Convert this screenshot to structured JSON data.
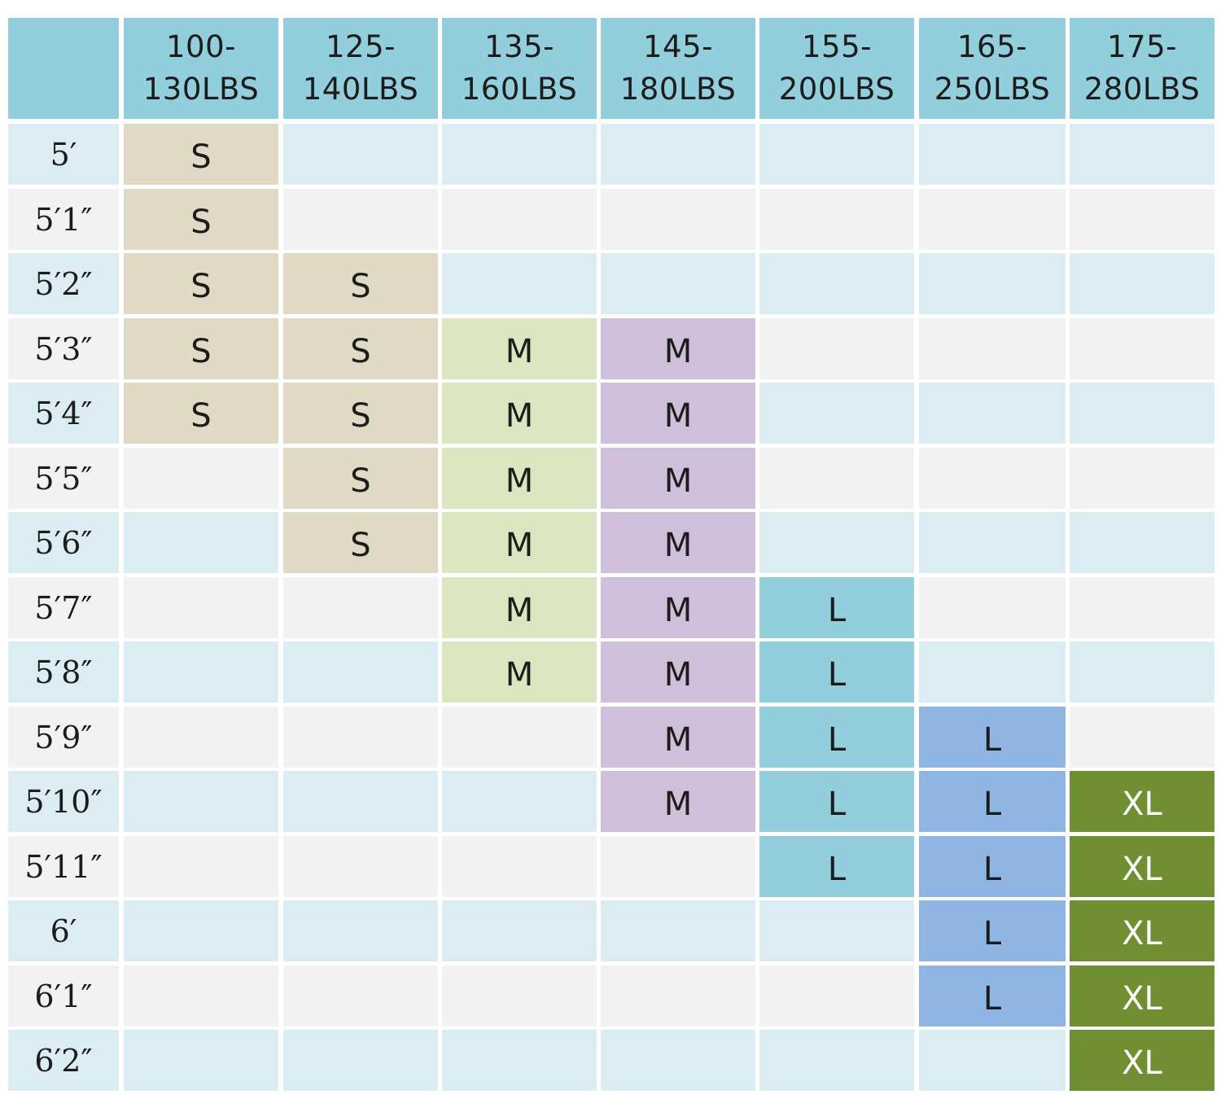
{
  "weight_ranges": [
    [
      "100-",
      "130LBS"
    ],
    [
      "125-",
      "140LBS"
    ],
    [
      "135-",
      "160LBS"
    ],
    [
      "145-",
      "180LBS"
    ],
    [
      "155-",
      "200LBS"
    ],
    [
      "165-",
      "250LBS"
    ],
    [
      "175-",
      "280LBS"
    ]
  ],
  "heights": [
    "5′",
    "5′1″",
    "5′2″",
    "5′3″",
    "5′4″",
    "5′5″",
    "5′6″",
    "5′7″",
    "5′8″",
    "5′9″",
    "5′10″",
    "5′11″",
    "6′",
    "6′1″",
    "6′2″"
  ],
  "sizes": [
    [
      "S",
      "",
      "",
      "",
      "",
      "",
      ""
    ],
    [
      "S",
      "",
      "",
      "",
      "",
      "",
      ""
    ],
    [
      "S",
      "S",
      "",
      "",
      "",
      "",
      ""
    ],
    [
      "S",
      "S",
      "M",
      "M",
      "",
      "",
      ""
    ],
    [
      "S",
      "S",
      "M",
      "M",
      "",
      "",
      ""
    ],
    [
      "",
      "S",
      "M",
      "M",
      "",
      "",
      ""
    ],
    [
      "",
      "S",
      "M",
      "M",
      "",
      "",
      ""
    ],
    [
      "",
      "",
      "M",
      "M",
      "L",
      "",
      ""
    ],
    [
      "",
      "",
      "M",
      "M",
      "L",
      "",
      ""
    ],
    [
      "",
      "",
      "",
      "M",
      "L",
      "L",
      ""
    ],
    [
      "",
      "",
      "",
      "M",
      "L",
      "L",
      "XL"
    ],
    [
      "",
      "",
      "",
      "",
      "L",
      "L",
      "XL"
    ],
    [
      "",
      "",
      "",
      "",
      "",
      "L",
      "XL"
    ],
    [
      "",
      "",
      "",
      "",
      "",
      "L",
      "XL"
    ],
    [
      "",
      "",
      "",
      "",
      "",
      "",
      "XL"
    ]
  ],
  "colors": {
    "header": "#93cedc",
    "row_even": "#dbecf3",
    "row_odd": "#f2f2f2",
    "S": "#e0d9c4",
    "M_135_160": "#dbe6c1",
    "M_145_180": "#cfbfdb",
    "L_155_200": "#93cedc",
    "L_165_250": "#8fb5e3",
    "XL": "#6f8f32"
  }
}
